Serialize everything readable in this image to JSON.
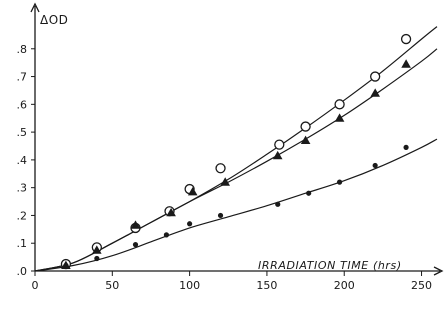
{
  "chart_data": {
    "type": "scatter",
    "ylabel": "ΔOD",
    "xlabel": "IRRADIATION TIME (hrs)",
    "xlim": [
      0,
      260
    ],
    "ylim": [
      0,
      0.9
    ],
    "x_ticks": [
      0,
      50,
      100,
      150,
      200,
      250
    ],
    "x_tick_labels": [
      "0",
      "50",
      "100",
      "150",
      "200",
      "250"
    ],
    "y_ticks": [
      0,
      0.1,
      0.2,
      0.3,
      0.4,
      0.5,
      0.6,
      0.7,
      0.8
    ],
    "y_tick_labels": [
      ".0",
      ".1",
      ".2",
      ".3",
      ".4",
      ".5",
      ".6",
      ".7",
      ".8"
    ],
    "grid": false,
    "series": [
      {
        "marker": "open-circle",
        "x": [
          20,
          40,
          65,
          87,
          100,
          120,
          158,
          175,
          197,
          220,
          240
        ],
        "y": [
          0.025,
          0.085,
          0.155,
          0.215,
          0.295,
          0.37,
          0.455,
          0.52,
          0.6,
          0.7,
          0.835
        ]
      },
      {
        "marker": "filled-triangle",
        "x": [
          20,
          40,
          65,
          88,
          102,
          123,
          157,
          175,
          197,
          220,
          240
        ],
        "y": [
          0.02,
          0.075,
          0.165,
          0.21,
          0.285,
          0.32,
          0.415,
          0.47,
          0.55,
          0.64,
          0.745
        ]
      },
      {
        "marker": "filled-circle",
        "x": [
          20,
          40,
          65,
          85,
          100,
          120,
          157,
          177,
          197,
          220,
          240
        ],
        "y": [
          0.02,
          0.045,
          0.095,
          0.13,
          0.17,
          0.2,
          0.24,
          0.28,
          0.32,
          0.38,
          0.445
        ]
      }
    ],
    "fit_curves": [
      {
        "for_marker": "open-circle",
        "x": [
          0,
          25,
          50,
          75,
          100,
          125,
          150,
          175,
          200,
          225,
          250,
          260
        ],
        "y": [
          0,
          0.03,
          0.1,
          0.175,
          0.25,
          0.33,
          0.42,
          0.515,
          0.615,
          0.72,
          0.835,
          0.88
        ]
      },
      {
        "for_marker": "filled-triangle",
        "x": [
          0,
          25,
          50,
          75,
          100,
          125,
          150,
          175,
          200,
          225,
          250,
          260
        ],
        "y": [
          0,
          0.03,
          0.1,
          0.175,
          0.25,
          0.32,
          0.395,
          0.475,
          0.56,
          0.655,
          0.755,
          0.8
        ]
      },
      {
        "for_marker": "filled-circle",
        "x": [
          0,
          25,
          50,
          75,
          100,
          125,
          150,
          175,
          200,
          225,
          250,
          260
        ],
        "y": [
          0,
          0.02,
          0.055,
          0.105,
          0.155,
          0.195,
          0.235,
          0.28,
          0.325,
          0.38,
          0.445,
          0.475
        ]
      }
    ]
  }
}
